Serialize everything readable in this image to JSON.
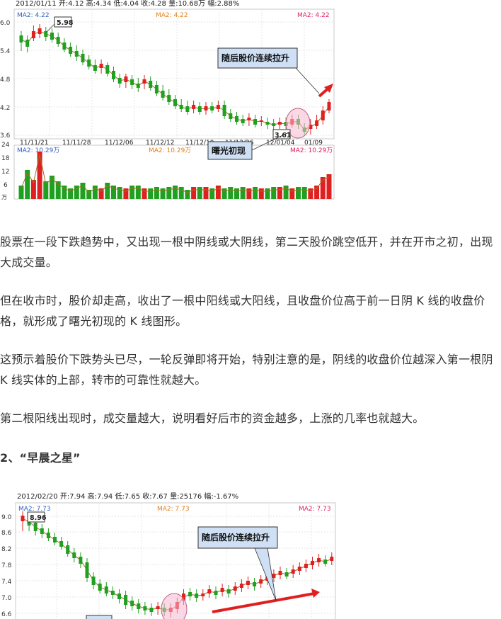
{
  "chart1": {
    "info_line": "2012/01/11 开:4.12 高:4.34 低:4.04 收:4.28 量:10.68万 幅:2.88%",
    "ma_left": "MA2: 4.22",
    "ma_mid": "MA2: 4.22",
    "ma_right": "MA2: 4.22",
    "y_ticks": [
      "6.0",
      "5.4",
      "4.8",
      "4.2",
      "3.6"
    ],
    "x_ticks": [
      "11/11/21",
      "11/11/28",
      "11/12/06",
      "11/12/12",
      "11/12/19",
      "11/12/26",
      "12/01/04",
      "01/09"
    ],
    "high_label": "5.98",
    "low_label": "3.61",
    "callout_rise": "随后股价连续拉升",
    "callout_pattern": "曙光初现",
    "vol_ticks": [
      "24",
      "18",
      "12",
      "6",
      "万"
    ],
    "vol_ma_left": "MA2: 10.29万",
    "vol_ma_mid": "MA2: 10.29万",
    "vol_ma_right": "MA2: 10.29万",
    "colors": {
      "up": "#e02020",
      "down": "#20a020",
      "callout": "#cfe0f5",
      "arrow": "#e02020",
      "circle": "#f5b8cf"
    }
  },
  "chart2": {
    "info_line": "2012/02/20 开:7.94 高:7.94 低:7.65 收:7.67 量:25176 幅:-1.67%",
    "ma_left": "MA2: 7.73",
    "ma_mid": "MA2: 7.73",
    "ma_right": "MA2: 7.73",
    "y_ticks": [
      "9.0",
      "8.6",
      "8.2",
      "7.8",
      "7.4",
      "7.0",
      "6.6"
    ],
    "high_label": "8.96",
    "callout_rise": "随后股价连续拉升"
  },
  "text": {
    "p1": "股票在一段下跌趋势中，又出现一根中阴线或大阴线，第二天股价跳空低开，并在开市之初，出现大成交量。",
    "p2": "但在收市时，股价却走高，收出了一根中阳线或大阳线，且收盘价位高于前一日阴 K 线的收盘价格，就形成了曙光初现的 K 线图形。",
    "p3": "这预示着股价下跌势头已尽，一轮反弹即将开始，特别注意的是，阴线的收盘价位越深入第一根阴 K 线实体的上部，转市的可靠性就越大。",
    "p4": "第二根阳线出现时，成交量越大，说明看好后市的资金越多，上涨的几率也就越大。",
    "heading2": "2、“早晨之星”"
  }
}
